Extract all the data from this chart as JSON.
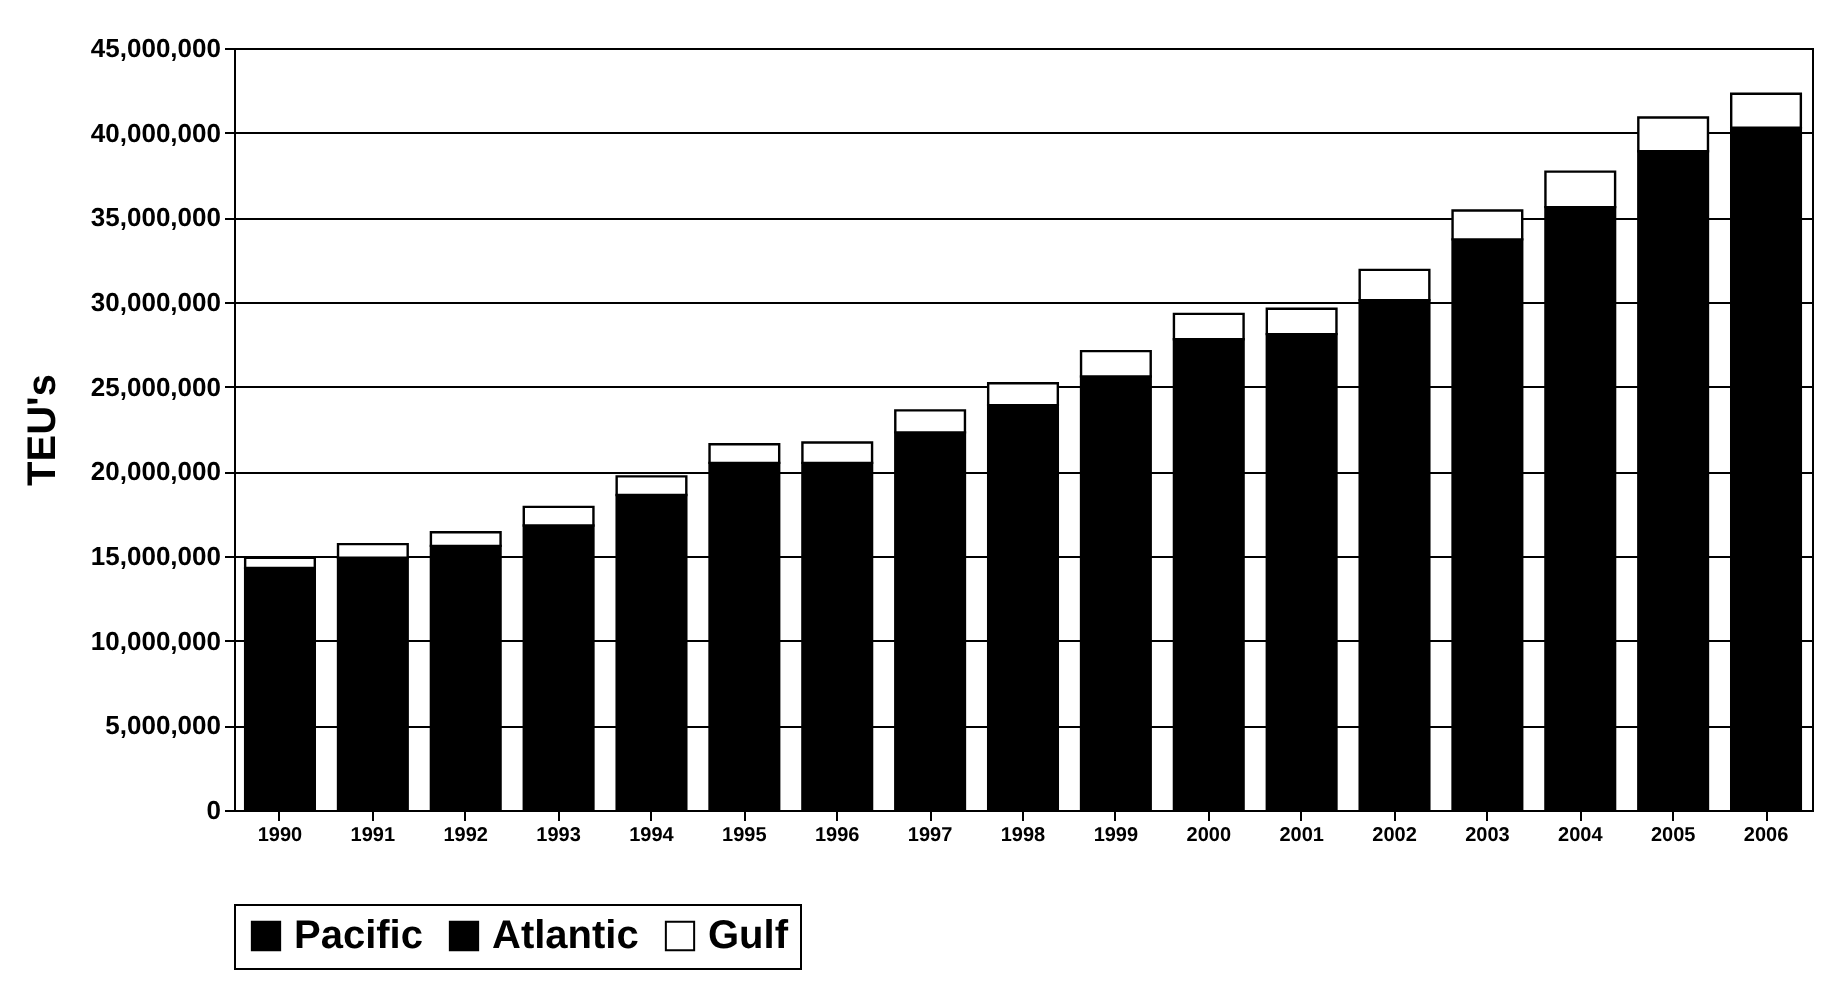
{
  "chart_data": {
    "type": "bar",
    "ylabel": "TEU's",
    "stacked": true,
    "grid": "y",
    "legend": "bottom",
    "categories": [
      "1990",
      "1991",
      "1992",
      "1993",
      "1994",
      "1995",
      "1996",
      "1997",
      "1998",
      "1999",
      "2000",
      "2001",
      "2002",
      "2003",
      "2004",
      "2005",
      "2006"
    ],
    "ylim": [
      0,
      45000000
    ],
    "yticks": [
      0,
      {
        "value": 5000000,
        "label": "5,000,000"
      },
      {
        "value": 10000000,
        "label": "10,000,000"
      },
      {
        "value": 15000000,
        "label": "15,000,000"
      },
      {
        "value": 20000000,
        "label": "20,000,000"
      },
      {
        "value": 25000000,
        "label": "25,000,000"
      },
      {
        "value": 30000000,
        "label": "30,000,000"
      },
      {
        "value": 35000000,
        "label": "35,000,000"
      },
      {
        "value": 40000000,
        "label": "40,000,000"
      },
      {
        "value": 45000000,
        "label": "45,000,000"
      }
    ],
    "series": [
      {
        "name": "Pacific",
        "color": "#000000",
        "values": [
          14300000,
          14900000,
          15600000,
          16800000,
          18600000,
          20500000,
          20500000,
          22300000,
          23900000,
          25600000,
          27800000,
          28100000,
          30100000,
          33700000,
          35600000,
          38900000,
          40300000
        ]
      },
      {
        "name": "Atlantic",
        "color": "#000000",
        "values": [
          null,
          null,
          null,
          null,
          null,
          null,
          null,
          null,
          null,
          null,
          null,
          null,
          null,
          null,
          null,
          null,
          null
        ]
      },
      {
        "name": "Gulf",
        "color": "#ffffff",
        "values": [
          600000,
          800000,
          800000,
          1100000,
          1100000,
          1100000,
          1200000,
          1300000,
          1300000,
          1500000,
          1500000,
          1500000,
          1800000,
          1700000,
          2100000,
          2000000,
          2000000
        ]
      }
    ]
  }
}
